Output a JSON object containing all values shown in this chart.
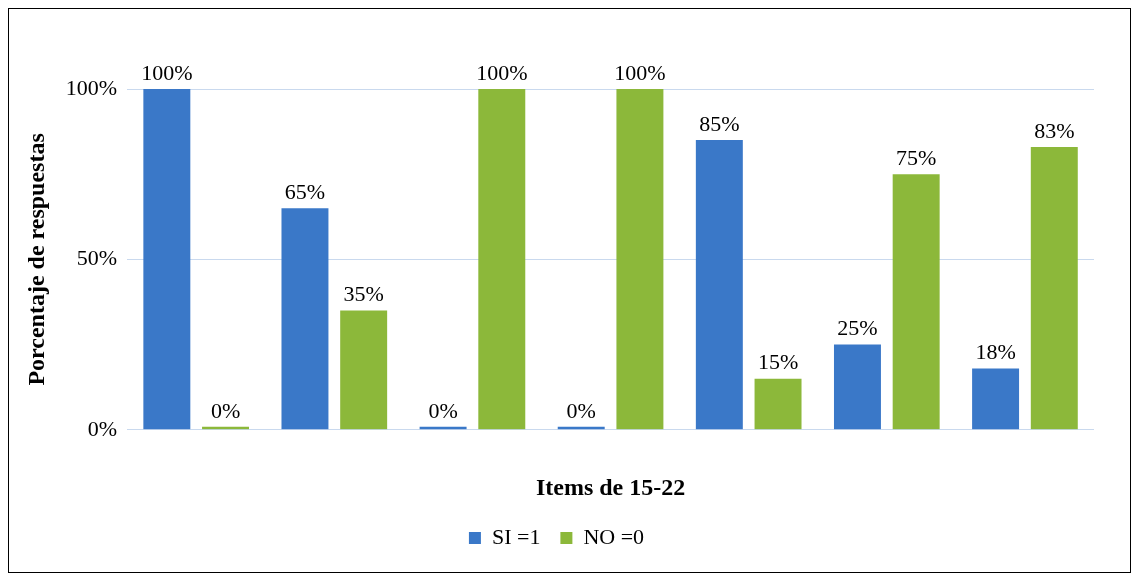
{
  "chart_data": {
    "type": "bar",
    "xlabel": "Items de 15-22",
    "ylabel": "Porcentaje de respuestas",
    "categories": [
      null,
      null,
      null,
      null,
      null,
      null,
      null
    ],
    "series": [
      {
        "name": "SI =1",
        "color": "#3a78c8",
        "values": [
          100,
          65,
          0,
          0,
          85,
          25,
          18
        ],
        "value_labels": [
          "100%",
          "65%",
          "0%",
          "0%",
          "85%",
          "25%",
          "18%"
        ]
      },
      {
        "name": "NO =0",
        "color": "#8cb83a",
        "values": [
          0,
          35,
          100,
          100,
          15,
          75,
          83
        ],
        "value_labels": [
          "0%",
          "35%",
          "100%",
          "100%",
          "15%",
          "75%",
          "83%"
        ]
      }
    ],
    "ylim": [
      0,
      100
    ],
    "yticks": [
      {
        "value": 0,
        "label": "0%"
      },
      {
        "value": 50,
        "label": "50%"
      },
      {
        "value": 100,
        "label": "100%"
      }
    ],
    "grid": "y",
    "legend": "bottom"
  }
}
